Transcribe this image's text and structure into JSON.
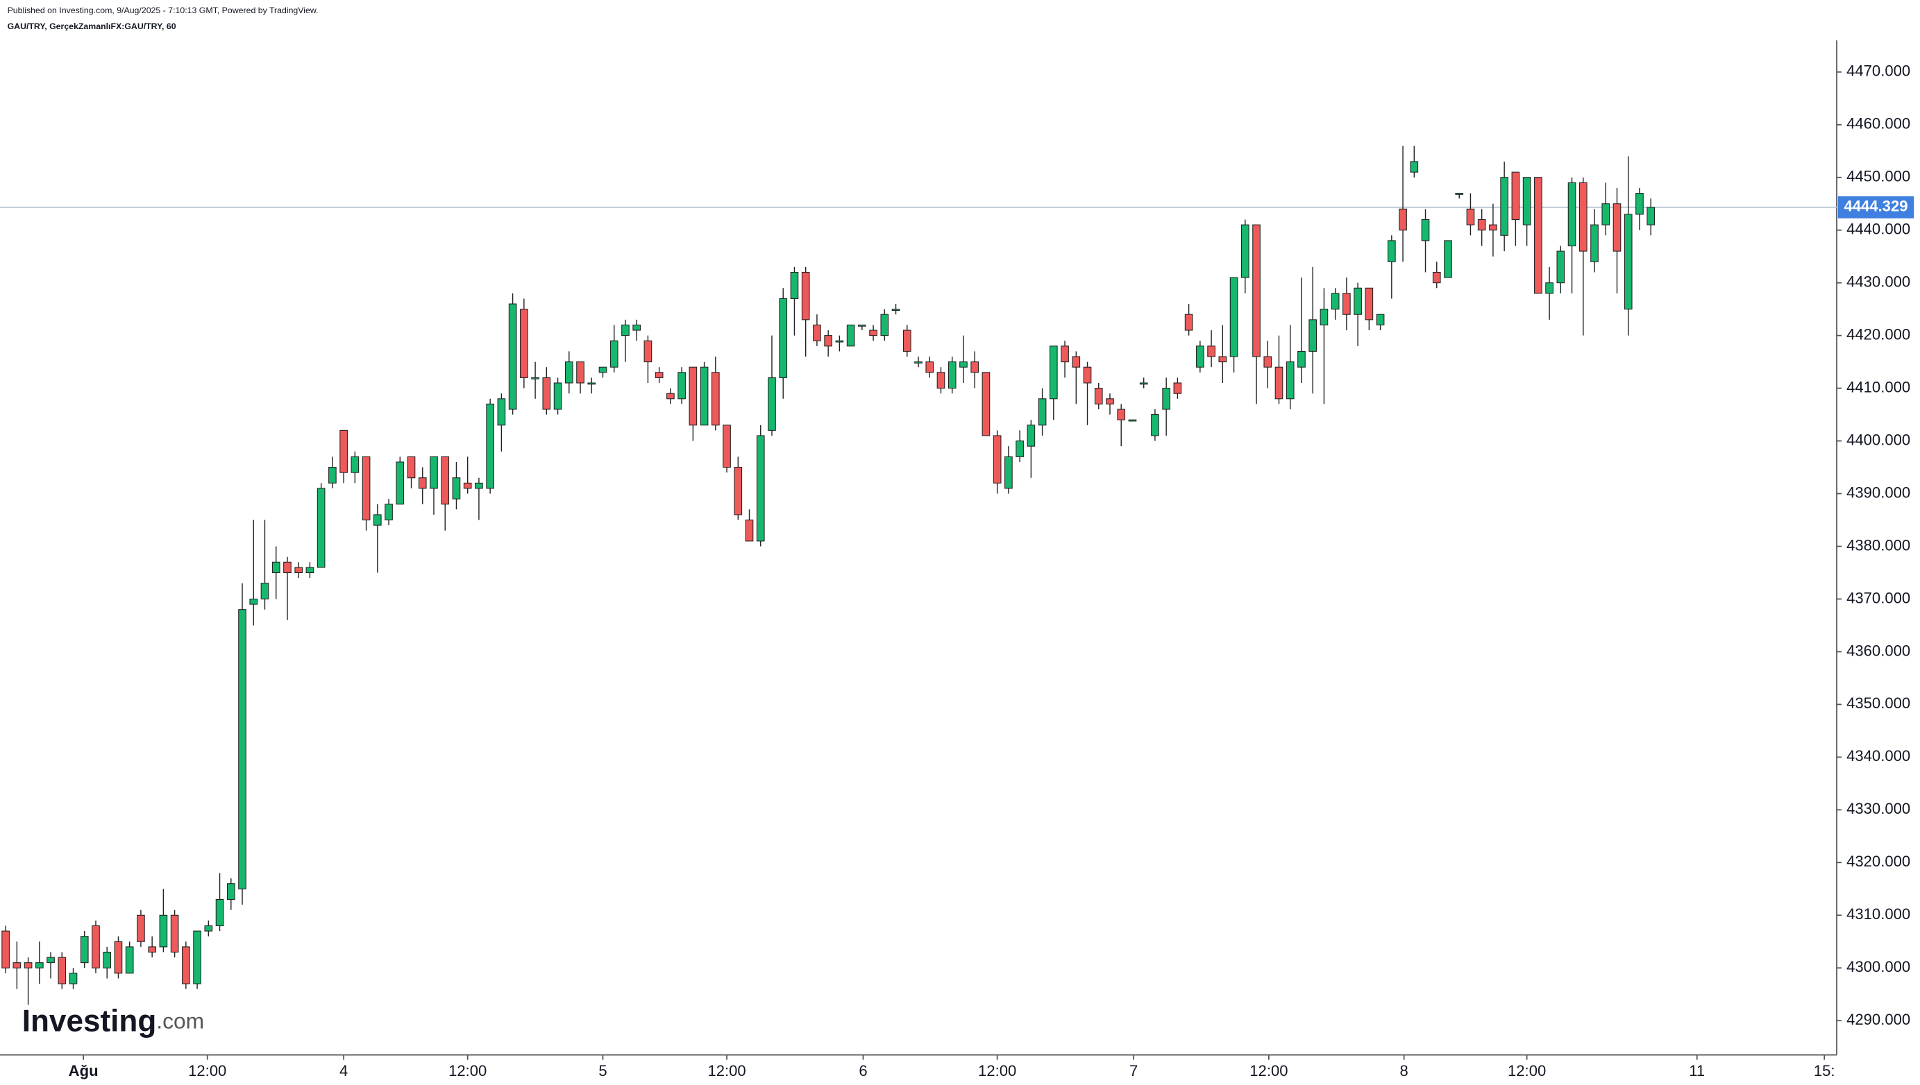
{
  "header": {
    "published": "Published on Investing.com, 9/Aug/2025 - 7:10:13 GMT, Powered by TradingView.",
    "symbol": "GAU/TRY, GerçekZamanlıFX:GAU/TRY, 60"
  },
  "logo": {
    "name": "Investing",
    "suffix": ".com"
  },
  "chart_data": {
    "type": "candlestick",
    "up_color": "#16b86e",
    "down_color": "#ee5a5a",
    "outline_color": "#222222",
    "last_price": 4444.329,
    "last_price_color": "#3f7fe0",
    "xlim": [
      -0.5,
      162.5
    ],
    "xticks": [
      {
        "value": 6.9,
        "label": "Ağu"
      },
      {
        "value": 17.9,
        "label": "12:00"
      },
      {
        "value": 30.0,
        "label": "4"
      },
      {
        "value": 41.0,
        "label": "12:00"
      },
      {
        "value": 53.0,
        "label": "5"
      },
      {
        "value": 64.0,
        "label": "12:00"
      },
      {
        "value": 76.1,
        "label": "6"
      },
      {
        "value": 88.0,
        "label": "12:00"
      },
      {
        "value": 100.1,
        "label": "7"
      },
      {
        "value": 112.1,
        "label": "12:00"
      },
      {
        "value": 124.1,
        "label": "8"
      },
      {
        "value": 135.0,
        "label": "12:00"
      },
      {
        "value": 150.1,
        "label": "11"
      },
      {
        "value": 161.4,
        "label": "15:"
      }
    ],
    "ylim": [
      4283.5,
      4476
    ],
    "yticks": [
      {
        "value": 4290,
        "label": "4290.000"
      },
      {
        "value": 4300,
        "label": "4300.000"
      },
      {
        "value": 4310,
        "label": "4310.000"
      },
      {
        "value": 4320,
        "label": "4320.000"
      },
      {
        "value": 4330,
        "label": "4330.000"
      },
      {
        "value": 4340,
        "label": "4340.000"
      },
      {
        "value": 4350,
        "label": "4350.000"
      },
      {
        "value": 4360,
        "label": "4360.000"
      },
      {
        "value": 4370,
        "label": "4370.000"
      },
      {
        "value": 4380,
        "label": "4380.000"
      },
      {
        "value": 4390,
        "label": "4390.000"
      },
      {
        "value": 4400,
        "label": "4400.000"
      },
      {
        "value": 4410,
        "label": "4410.000"
      },
      {
        "value": 4420,
        "label": "4420.000"
      },
      {
        "value": 4430,
        "label": "4430.000"
      },
      {
        "value": 4440,
        "label": "4440.000"
      },
      {
        "value": 4450,
        "label": "4450.000"
      },
      {
        "value": 4460,
        "label": "4460.000"
      },
      {
        "value": 4470,
        "label": "4470.000"
      }
    ],
    "open": [
      4307,
      4301,
      4301,
      4300,
      4301,
      4302,
      4297,
      4301,
      4308,
      4300,
      4305,
      4299,
      4310,
      4304,
      4304,
      4310,
      4304,
      4297,
      4307,
      4308,
      4313,
      4315,
      4369,
      4370,
      4375,
      4377,
      4376,
      4375,
      4376,
      4392,
      4402,
      4394,
      4397,
      4384,
      4385,
      4388,
      4397,
      4393,
      4391,
      4397,
      4389,
      4392,
      4391,
      4391,
      4403,
      4406,
      4425,
      4412,
      4412,
      4406,
      4411,
      4415,
      4411,
      4413,
      4414,
      4420,
      4421,
      4419,
      4413,
      4409,
      4408,
      4414,
      4403,
      4413,
      4403,
      4395,
      4385,
      4381,
      4402,
      4412,
      4427,
      4432,
      4422,
      4420,
      4419,
      4418,
      4422,
      4421,
      4420,
      4425,
      4421,
      4415,
      4415,
      4413,
      4410,
      4414,
      4415,
      4413,
      4401,
      4391,
      4397,
      4399,
      4403,
      4408,
      4418,
      4416,
      4414,
      4410,
      4408,
      4406,
      4404,
      4411,
      4401,
      4406,
      4411,
      4424,
      4414,
      4418,
      4416,
      4416,
      4431,
      4441,
      4416,
      4414,
      4408,
      4414,
      4417,
      4422,
      4425,
      4428,
      4424,
      4429,
      4422,
      4434,
      4444,
      4451,
      4438,
      4432,
      4431,
      4447,
      4444,
      4442,
      4441,
      4439,
      4451,
      4441,
      4450,
      4428,
      4430,
      4437,
      4449,
      4434,
      4441,
      4445,
      4425,
      4443,
      4441
    ],
    "high": [
      4308,
      4305,
      4302,
      4305,
      4303,
      4303,
      4300,
      4307,
      4309,
      4304,
      4306,
      4305,
      4311,
      4306,
      4315,
      4311,
      4305,
      4307,
      4309,
      4318,
      4317,
      4373,
      4385,
      4385,
      4380,
      4378,
      4377,
      4377,
      4392,
      4397,
      4402,
      4398,
      4397,
      4388,
      4389,
      4397,
      4397,
      4395,
      4397,
      4397,
      4396,
      4397,
      4393,
      4408,
      4409,
      4428,
      4427,
      4415,
      4414,
      4412,
      4417,
      4415,
      4412,
      4414,
      4422,
      4423,
      4423,
      4420,
      4414,
      4410,
      4414,
      4414,
      4415,
      4416,
      4403,
      4397,
      4387,
      4403,
      4420,
      4429,
      4433,
      4433,
      4424,
      4421,
      4420,
      4422,
      4422,
      4422,
      4425,
      4426,
      4422,
      4416,
      4416,
      4414,
      4416,
      4420,
      4417,
      4413,
      4402,
      4399,
      4402,
      4404,
      4410,
      4418,
      4419,
      4417,
      4415,
      4411,
      4409,
      4407,
      4404,
      4412,
      4406,
      4412,
      4412,
      4426,
      4419,
      4421,
      4422,
      4431,
      4442,
      4441,
      4419,
      4420,
      4422,
      4431,
      4433,
      4429,
      4429,
      4431,
      4430,
      4429,
      4424,
      4439,
      4456,
      4456,
      4444,
      4434,
      4438,
      4447,
      4447,
      4444,
      4445,
      4453,
      4451,
      4450,
      4450,
      4433,
      4437,
      4450,
      4450,
      4444,
      4449,
      4448,
      4454,
      4448,
      4446
    ],
    "low": [
      4299,
      4296,
      4293,
      4297,
      4298,
      4296,
      4296,
      4300,
      4299,
      4298,
      4298,
      4299,
      4304,
      4302,
      4303,
      4302,
      4296,
      4296,
      4306,
      4307,
      4311,
      4312,
      4365,
      4368,
      4370,
      4366,
      4374,
      4374,
      4376,
      4391,
      4392,
      4392,
      4383,
      4375,
      4384,
      4388,
      4391,
      4388,
      4386,
      4383,
      4387,
      4390,
      4385,
      4390,
      4398,
      4405,
      4410,
      4408,
      4405,
      4405,
      4409,
      4409,
      4409,
      4412,
      4413,
      4415,
      4419,
      4411,
      4411,
      4407,
      4407,
      4400,
      4403,
      4402,
      4394,
      4385,
      4381,
      4380,
      4401,
      4408,
      4420,
      4416,
      4418,
      4416,
      4417,
      4418,
      4421,
      4419,
      4419,
      4424,
      4416,
      4414,
      4412,
      4409,
      4409,
      4411,
      4410,
      4401,
      4390,
      4390,
      4396,
      4393,
      4401,
      4404,
      4412,
      4407,
      4403,
      4406,
      4405,
      4399,
      4404,
      4410,
      4400,
      4401,
      4408,
      4420,
      4413,
      4414,
      4411,
      4413,
      4428,
      4407,
      4410,
      4407,
      4406,
      4411,
      4409,
      4407,
      4423,
      4421,
      4418,
      4421,
      4421,
      4427,
      4434,
      4450,
      4432,
      4429,
      4431,
      4446,
      4439,
      4437,
      4435,
      4436,
      4437,
      4437,
      4428,
      4423,
      4428,
      4428,
      4420,
      4432,
      4439,
      4428,
      4420,
      4440,
      4439
    ],
    "close": [
      4300,
      4300,
      4300,
      4301,
      4302,
      4297,
      4299,
      4306,
      4300,
      4303,
      4299,
      4304,
      4305,
      4303,
      4310,
      4303,
      4297,
      4307,
      4308,
      4313,
      4316,
      4368,
      4370,
      4373,
      4377,
      4375,
      4375,
      4376,
      4391,
      4395,
      4394,
      4397,
      4385,
      4386,
      4388,
      4396,
      4393,
      4391,
      4397,
      4388,
      4393,
      4391,
      4392,
      4407,
      4408,
      4426,
      4412,
      4412,
      4406,
      4411,
      4415,
      4411,
      4411,
      4414,
      4419,
      4422,
      4422,
      4415,
      4412,
      4408,
      4413,
      4403,
      4414,
      4403,
      4395,
      4386,
      4381,
      4401,
      4412,
      4427,
      4432,
      4423,
      4419,
      4418,
      4419,
      4422,
      4422,
      4420,
      4424,
      4425,
      4417,
      4415,
      4413,
      4410,
      4415,
      4415,
      4413,
      4401,
      4392,
      4397,
      4400,
      4403,
      4408,
      4418,
      4415,
      4414,
      4411,
      4407,
      4407,
      4404,
      4404,
      4411,
      4405,
      4410,
      4409,
      4421,
      4418,
      4416,
      4415,
      4431,
      4441,
      4416,
      4414,
      4408,
      4415,
      4417,
      4423,
      4425,
      4428,
      4424,
      4429,
      4423,
      4424,
      4438,
      4440,
      4453,
      4442,
      4430,
      4438,
      4447,
      4441,
      4440,
      4440,
      4450,
      4442,
      4450,
      4428,
      4430,
      4436,
      4449,
      4436,
      4441,
      4445,
      4436,
      4443,
      4447,
      4444.329
    ]
  }
}
